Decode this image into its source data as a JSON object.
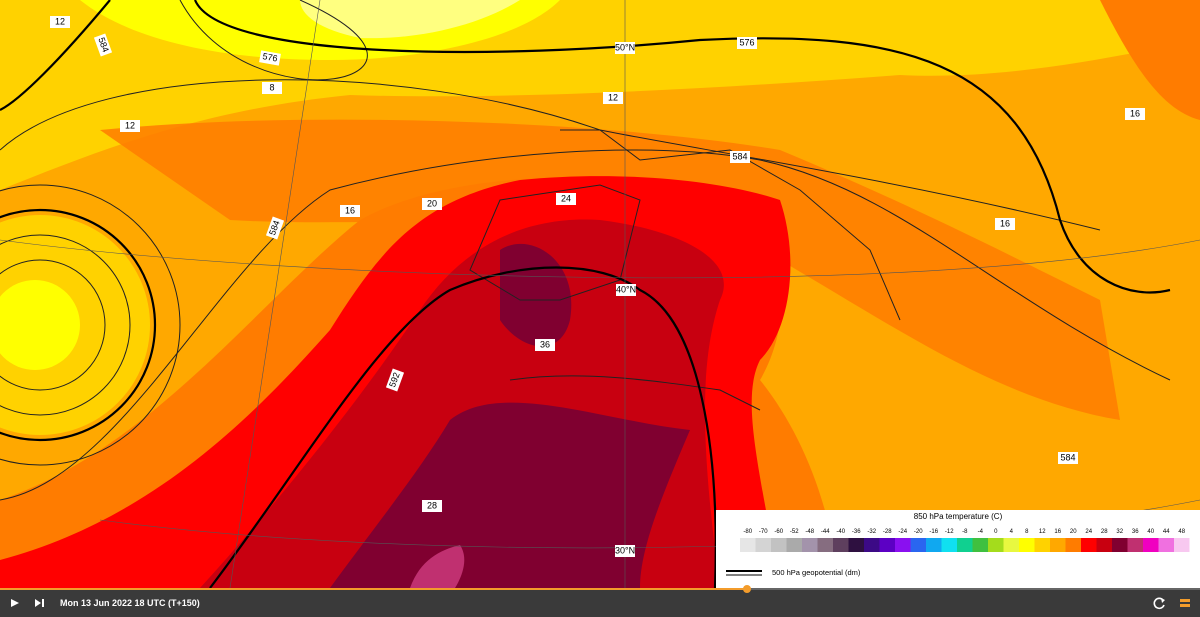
{
  "map": {
    "contour_labels": [
      "12",
      "584",
      "576",
      "8",
      "12",
      "576",
      "50°N",
      "12",
      "584",
      "584",
      "16",
      "20",
      "24",
      "40°N",
      "36",
      "592",
      "28",
      "30°N",
      "584",
      "16",
      "16"
    ],
    "legend": {
      "title": "850 hPa temperature (C)",
      "ticks": [
        -80,
        -70,
        -60,
        -52,
        -48,
        -44,
        -40,
        -36,
        -32,
        -28,
        -24,
        -20,
        -16,
        -12,
        -8,
        -4,
        0,
        4,
        8,
        12,
        16,
        20,
        24,
        28,
        32,
        36,
        40,
        44,
        48
      ],
      "colors": [
        "#e6e6e6",
        "#d4d4d4",
        "#c2c2c2",
        "#aaaaaa",
        "#a393ab",
        "#866d80",
        "#5e3f5e",
        "#2e1040",
        "#3c0a86",
        "#5c00c4",
        "#8a10f0",
        "#2a66f0",
        "#10a8f0",
        "#10e0f0",
        "#10d090",
        "#40c040",
        "#a4dc1c",
        "#e8f840",
        "#ffff00",
        "#ffd200",
        "#ffa800",
        "#ff7c00",
        "#ff0000",
        "#c80010",
        "#800030",
        "#c03070",
        "#f000c0",
        "#f070e0",
        "#f8c8f0"
      ],
      "line_label": "500 hPa geopotential (dm)"
    },
    "toolbar": {
      "time": "Mon 13 Jun 2022 18 UTC (T+150)"
    }
  }
}
